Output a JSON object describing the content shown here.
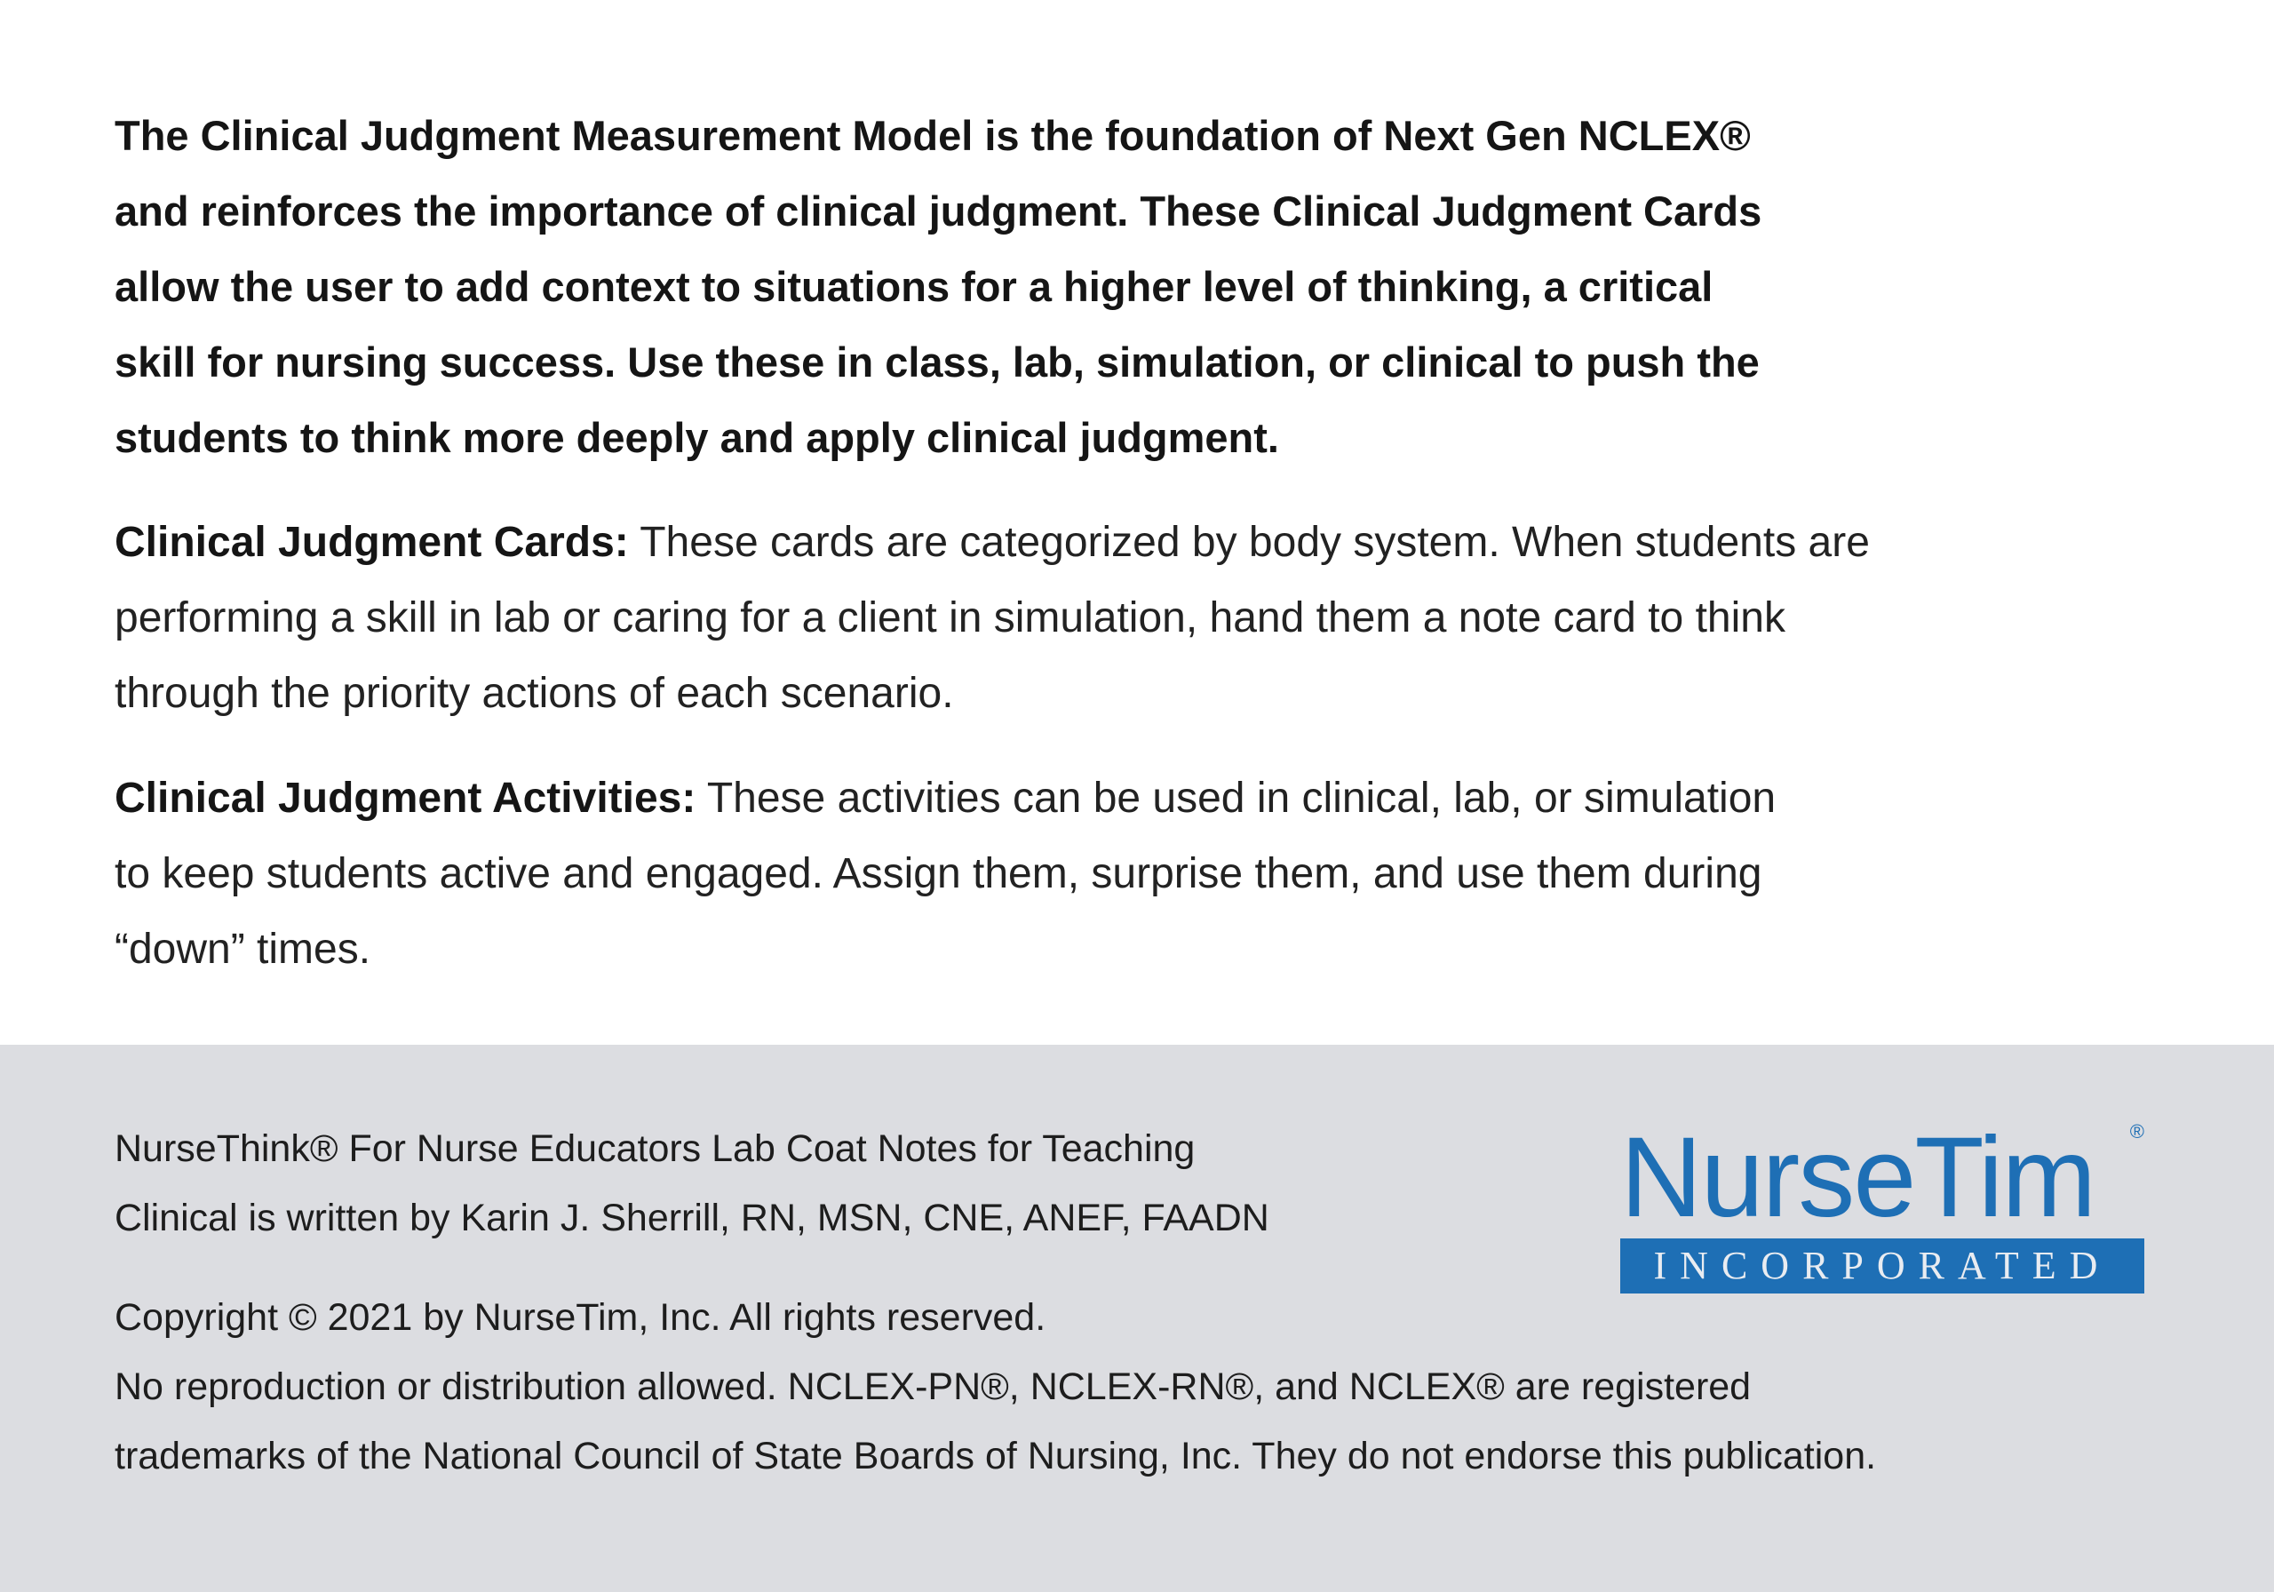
{
  "intro": {
    "lines": [
      "The Clinical Judgment Measurement Model is the foundation of Next Gen NCLEX®",
      "and reinforces the importance of clinical judgment. These Clinical Judgment Cards",
      "allow the user to add context to situations for a higher level of thinking, a critical",
      "skill for nursing success. Use these in class, lab, simulation, or clinical to push the",
      "students to think more deeply and apply clinical judgment."
    ]
  },
  "cards": {
    "heading": "Clinical Judgment Cards:",
    "lines": [
      " These cards are categorized by body system. When students are",
      "performing a skill in lab or caring for a client in simulation, hand them a note card to think",
      "through the priority actions of each scenario."
    ]
  },
  "activities": {
    "heading": "Clinical Judgment Activities:",
    "lines": [
      " These activities can be used in clinical, lab, or simulation",
      "to keep students active and engaged. Assign them, surprise them, and use them during",
      "“down” times."
    ]
  },
  "footer": {
    "credit_lines": [
      "NurseThink® For Nurse Educators Lab Coat Notes for Teaching",
      "Clinical is written by Karin J. Sherrill, RN, MSN, CNE, ANEF, FAADN"
    ],
    "copyright_lines": [
      "Copyright © 2021 by NurseTim, Inc. All rights reserved.",
      "No reproduction or distribution allowed. NCLEX-PN®, NCLEX-RN®, and NCLEX® are registered",
      "trademarks of the National Council of State Boards of Nursing, Inc. They do not endorse this publication."
    ],
    "background_color": "#dcdde1"
  },
  "logo": {
    "name": "NurseTim",
    "registered": "®",
    "subtitle": "INCORPORATED",
    "color": "#1e6fb5"
  }
}
